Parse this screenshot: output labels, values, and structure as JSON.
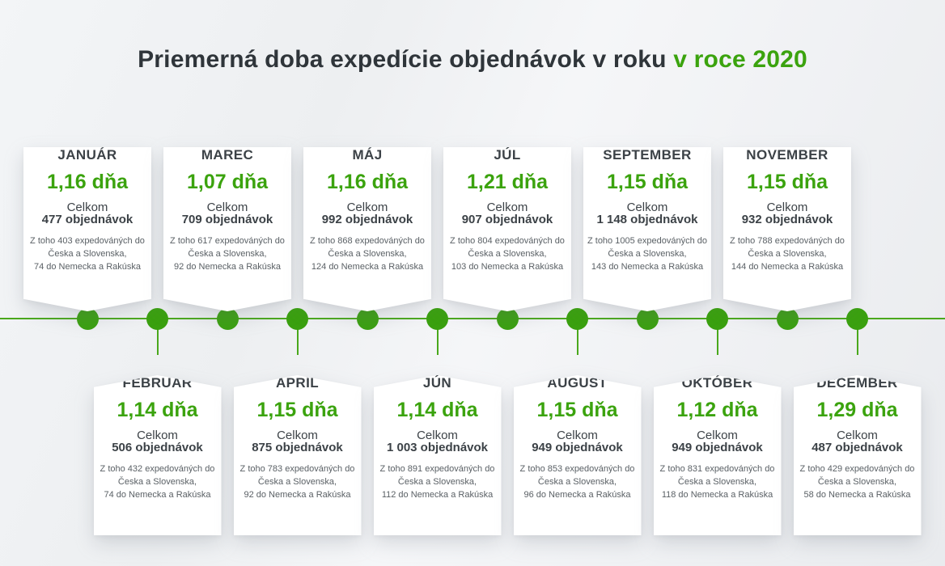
{
  "title": {
    "main": "Priemerná doba expedície objednávok v roku",
    "highlight": "v roce 2020"
  },
  "labels": {
    "celkom": "Celkom"
  },
  "colors": {
    "accent_green": "#3ba30e",
    "timeline_green": "#4aa81c",
    "dot_green": "#3aa00f",
    "title_dark": "#2f353a",
    "text_dark": "#3c4247",
    "text_muted": "#5a6065",
    "card_bg": "#ffffff",
    "page_bg": "#eef0f2"
  },
  "months": [
    {
      "name": "JANUÁR",
      "days": "1,16 dňa",
      "total": "477 objednávok",
      "position": "top",
      "details": [
        "Z toho 403 expedováných do",
        "Česka a Slovenska,",
        "74 do Nemecka a Rakúska"
      ]
    },
    {
      "name": "FEBRUÁR",
      "days": "1,14 dňa",
      "total": "506 objednávok",
      "position": "bottom",
      "details": [
        "Z toho 432 expedováných do",
        "Česka a Slovenska,",
        "74 do Nemecka a Rakúska"
      ]
    },
    {
      "name": "MAREC",
      "days": "1,07 dňa",
      "total": "709 objednávok",
      "position": "top",
      "details": [
        "Z toho 617 expedováných do",
        "Česka a Slovenska,",
        "92 do Nemecka a Rakúska"
      ]
    },
    {
      "name": "APRÍL",
      "days": "1,15 dňa",
      "total": "875 objednávok",
      "position": "bottom",
      "details": [
        "Z toho 783 expedováných do",
        "Česka a Slovenska,",
        "92 do Nemecka a Rakúska"
      ]
    },
    {
      "name": "MÁJ",
      "days": "1,16 dňa",
      "total": "992 objednávok",
      "position": "top",
      "details": [
        "Z toho 868 expedováných do",
        "Česka a Slovenska,",
        "124 do Nemecka a Rakúska"
      ]
    },
    {
      "name": "JÚN",
      "days": "1,14 dňa",
      "total": "1 003 objednávok",
      "position": "bottom",
      "details": [
        "Z toho 891 expedováných do",
        "Česka a Slovenska,",
        "112 do Nemecka a Rakúska"
      ]
    },
    {
      "name": "JÚL",
      "days": "1,21 dňa",
      "total": "907 objednávok",
      "position": "top",
      "details": [
        "Z toho 804 expedováných do",
        "Česka a Slovenska,",
        "103 do Nemecka a Rakúska"
      ]
    },
    {
      "name": "AUGUST",
      "days": "1,15 dňa",
      "total": "949 objednávok",
      "position": "bottom",
      "details": [
        "Z toho 853 expedováných do",
        "Česka a Slovenska,",
        "96 do Nemecka a Rakúska"
      ]
    },
    {
      "name": "SEPTEMBER",
      "days": "1,15 dňa",
      "total": "1 148 objednávok",
      "position": "top",
      "details": [
        "Z toho 1005 expedováných do",
        "Česka a Slovenska,",
        "143 do Nemecka a Rakúska"
      ]
    },
    {
      "name": "OKTÓBER",
      "days": "1,12 dňa",
      "total": "949 objednávok",
      "position": "bottom",
      "details": [
        "Z toho 831 expedováných do",
        "Česka a Slovenska,",
        "118 do Nemecka a Rakúska"
      ]
    },
    {
      "name": "NOVEMBER",
      "days": "1,15 dňa",
      "total": "932 objednávok",
      "position": "top",
      "details": [
        "Z toho 788 expedováných do",
        "Česka a Slovenska,",
        "144 do Nemecka a Rakúska"
      ]
    },
    {
      "name": "DECEMBER",
      "days": "1,29 dňa",
      "total": "487 objednávok",
      "position": "bottom",
      "details": [
        "Z toho 429 expedováných do",
        "Česka a Slovenska,",
        "58 do Nemecka a Rakúska"
      ]
    }
  ],
  "chart_data": {
    "type": "table",
    "title": "Priemerná doba expedície objednávok v roku v roce 2020",
    "columns": [
      "month",
      "avg_dispatch_days",
      "total_orders",
      "orders_cz_sk",
      "orders_de_at"
    ],
    "rows": [
      [
        "JANUÁR",
        1.16,
        477,
        403,
        74
      ],
      [
        "FEBRUÁR",
        1.14,
        506,
        432,
        74
      ],
      [
        "MAREC",
        1.07,
        709,
        617,
        92
      ],
      [
        "APRÍL",
        1.15,
        875,
        783,
        92
      ],
      [
        "MÁJ",
        1.16,
        992,
        868,
        124
      ],
      [
        "JÚN",
        1.14,
        1003,
        891,
        112
      ],
      [
        "JÚL",
        1.21,
        907,
        804,
        103
      ],
      [
        "AUGUST",
        1.15,
        949,
        853,
        96
      ],
      [
        "SEPTEMBER",
        1.15,
        1148,
        1005,
        143
      ],
      [
        "OKTÓBER",
        1.12,
        949,
        831,
        118
      ],
      [
        "NOVEMBER",
        1.15,
        932,
        788,
        144
      ],
      [
        "DECEMBER",
        1.29,
        487,
        429,
        58
      ]
    ],
    "layout": "horizontal timeline, months alternating above/below a green axis line with dot markers"
  }
}
